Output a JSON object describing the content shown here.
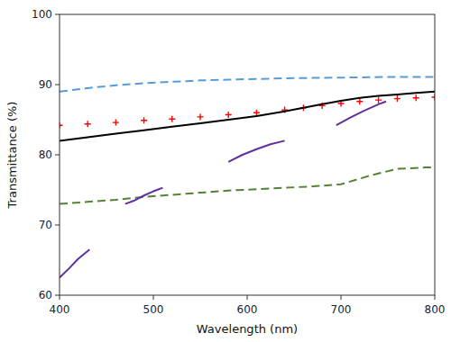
{
  "chart_data": {
    "type": "line",
    "xlabel": "Wavelength (nm)",
    "ylabel": "Transmittance (%)",
    "xlim": [
      400,
      800
    ],
    "ylim": [
      60,
      100
    ],
    "xticks": [
      400,
      500,
      600,
      700,
      800
    ],
    "yticks": [
      60,
      70,
      80,
      90,
      100
    ],
    "grid": false,
    "series": [
      {
        "color": "#5B9BD5",
        "line_style": "dashed",
        "x": [
          400,
          430,
          460,
          490,
          520,
          550,
          580,
          610,
          640,
          670,
          700,
          730,
          760,
          790,
          800
        ],
        "values": [
          89.0,
          89.5,
          89.9,
          90.2,
          90.4,
          90.6,
          90.7,
          90.8,
          90.9,
          90.95,
          91.0,
          91.05,
          91.1,
          91.1,
          91.1
        ]
      },
      {
        "color": "#FF0000",
        "line_style": "none",
        "marker": "plus",
        "x": [
          400,
          430,
          460,
          490,
          520,
          550,
          580,
          610,
          640,
          660,
          680,
          700,
          720,
          740,
          760,
          780,
          800
        ],
        "values": [
          84.2,
          84.4,
          84.6,
          84.9,
          85.1,
          85.4,
          85.7,
          86.0,
          86.4,
          86.7,
          87.0,
          87.3,
          87.6,
          87.8,
          88.0,
          88.1,
          88.2
        ]
      },
      {
        "color": "#000000",
        "line_style": "solid",
        "x": [
          400,
          430,
          460,
          490,
          520,
          550,
          580,
          610,
          640,
          660,
          680,
          700,
          720,
          740,
          760,
          780,
          800
        ],
        "values": [
          82.0,
          82.5,
          83.0,
          83.5,
          84.0,
          84.5,
          85.0,
          85.5,
          86.2,
          86.7,
          87.2,
          87.7,
          88.1,
          88.4,
          88.6,
          88.8,
          89.0
        ]
      },
      {
        "color": "#548235",
        "line_style": "dashed",
        "x": [
          400,
          430,
          460,
          490,
          520,
          550,
          580,
          610,
          640,
          670,
          700,
          730,
          760,
          790,
          800
        ],
        "values": [
          73.0,
          73.3,
          73.6,
          74.0,
          74.3,
          74.6,
          74.9,
          75.1,
          75.3,
          75.5,
          75.8,
          77.0,
          78.0,
          78.2,
          78.2
        ]
      },
      {
        "color": "#6030A0",
        "line_style": "solid",
        "x": [
          400,
          410,
          420,
          432
        ],
        "values": [
          62.5,
          63.8,
          65.2,
          66.5
        ]
      },
      {
        "color": "#6030A0",
        "line_style": "solid",
        "x": [
          470,
          480,
          490,
          500,
          510
        ],
        "values": [
          73.0,
          73.5,
          74.2,
          74.8,
          75.3
        ]
      },
      {
        "color": "#6030A0",
        "line_style": "solid",
        "x": [
          580,
          595,
          610,
          625,
          640
        ],
        "values": [
          79.0,
          80.0,
          80.8,
          81.5,
          82.0
        ]
      },
      {
        "color": "#6030A0",
        "line_style": "solid",
        "x": [
          695,
          710,
          725,
          740,
          748
        ],
        "values": [
          84.2,
          85.3,
          86.3,
          87.2,
          87.6
        ]
      }
    ]
  }
}
